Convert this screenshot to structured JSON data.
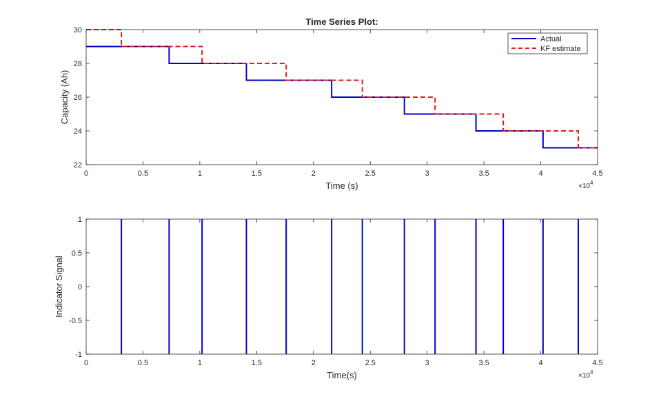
{
  "chart_data": [
    {
      "type": "line",
      "title": "Time Series Plot:",
      "xlabel": "Time (s)",
      "ylabel": "Capacity (Ah)",
      "xlim": [
        0,
        45000
      ],
      "ylim": [
        22,
        30
      ],
      "x_ticks": [
        0,
        5000,
        10000,
        15000,
        20000,
        25000,
        30000,
        35000,
        40000,
        45000
      ],
      "x_tick_labels": [
        "0",
        "0.5",
        "1",
        "1.5",
        "2",
        "2.5",
        "3",
        "3.5",
        "4",
        "4.5"
      ],
      "y_ticks": [
        22,
        24,
        26,
        28,
        30
      ],
      "y_tick_labels": [
        "22",
        "24",
        "26",
        "28",
        "30"
      ],
      "x_exponent_base": "×10",
      "x_exponent_power": "4",
      "grid": false,
      "legend_position": "top-right",
      "series": [
        {
          "name": "Actual",
          "color": "#0000cd",
          "style": "solid",
          "steps": [
            {
              "x": 0,
              "y": 29
            },
            {
              "x": 7300,
              "y": 28
            },
            {
              "x": 14100,
              "y": 27
            },
            {
              "x": 21600,
              "y": 26
            },
            {
              "x": 28000,
              "y": 25
            },
            {
              "x": 34300,
              "y": 24
            },
            {
              "x": 40200,
              "y": 23
            },
            {
              "x": 45000,
              "y": 23
            }
          ]
        },
        {
          "name": "KF estimate",
          "color": "#e8161b",
          "style": "dashed",
          "steps": [
            {
              "x": 0,
              "y": 30
            },
            {
              "x": 3100,
              "y": 29
            },
            {
              "x": 10200,
              "y": 28
            },
            {
              "x": 17600,
              "y": 27
            },
            {
              "x": 24300,
              "y": 26
            },
            {
              "x": 30700,
              "y": 25
            },
            {
              "x": 36700,
              "y": 24
            },
            {
              "x": 43300,
              "y": 23
            },
            {
              "x": 45000,
              "y": 23
            }
          ]
        }
      ]
    },
    {
      "type": "line",
      "xlabel": "Time(s)",
      "ylabel": "Indicator Signal",
      "xlim": [
        0,
        45000
      ],
      "ylim": [
        -1,
        1
      ],
      "x_ticks": [
        0,
        5000,
        10000,
        15000,
        20000,
        25000,
        30000,
        35000,
        40000,
        45000
      ],
      "x_tick_labels": [
        "0",
        "0.5",
        "1",
        "1.5",
        "2",
        "2.5",
        "3",
        "3.5",
        "4",
        "4.5"
      ],
      "y_ticks": [
        -1,
        -0.5,
        0,
        0.5,
        1
      ],
      "y_tick_labels": [
        "-1",
        "-0.5",
        "0",
        "0.5",
        "1"
      ],
      "x_exponent_base": "×10",
      "x_exponent_power": "4",
      "grid": false,
      "series": [
        {
          "color": "#0000cd",
          "style": "solid",
          "spikes_x": [
            3100,
            7300,
            10200,
            14100,
            17600,
            21600,
            24300,
            28000,
            30700,
            34300,
            36700,
            40200,
            43300
          ]
        }
      ]
    }
  ]
}
